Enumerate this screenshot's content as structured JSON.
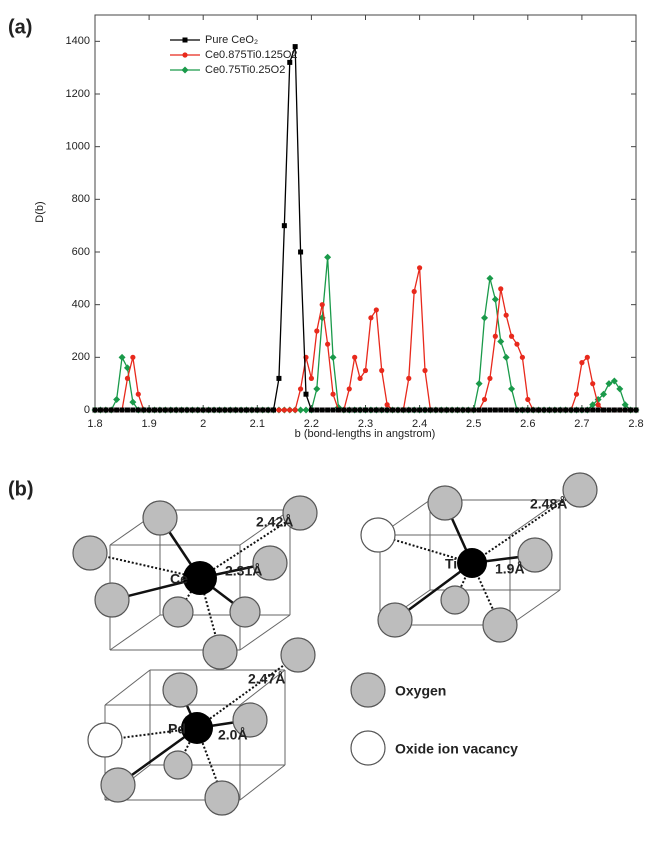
{
  "figure_labels": [
    "(a)",
    "(b)"
  ],
  "chart_data": {
    "type": "line",
    "x_label": "b (bond-lengths in angstrom)",
    "y_label": "D(b)",
    "xlim": [
      1.8,
      2.8
    ],
    "ylim": [
      0,
      1500
    ],
    "xticks": [
      1.8,
      1.9,
      2,
      2.1,
      2.2,
      2.3,
      2.4,
      2.5,
      2.6,
      2.7,
      2.8
    ],
    "yticks": [
      0,
      200,
      400,
      600,
      800,
      1000,
      1200,
      1400
    ],
    "grid": false,
    "legend": "upper left",
    "x": [
      1.8,
      1.81,
      1.82,
      1.83,
      1.84,
      1.85,
      1.86,
      1.87,
      1.88,
      1.89,
      1.9,
      1.91,
      1.92,
      1.93,
      1.94,
      1.95,
      1.96,
      1.97,
      1.98,
      1.99,
      2,
      2.01,
      2.02,
      2.03,
      2.04,
      2.05,
      2.06,
      2.07,
      2.08,
      2.09,
      2.1,
      2.11,
      2.12,
      2.13,
      2.14,
      2.15,
      2.16,
      2.17,
      2.18,
      2.19,
      2.2,
      2.21,
      2.22,
      2.23,
      2.24,
      2.25,
      2.26,
      2.27,
      2.28,
      2.29,
      2.3,
      2.31,
      2.32,
      2.33,
      2.34,
      2.35,
      2.36,
      2.37,
      2.38,
      2.39,
      2.4,
      2.41,
      2.42,
      2.43,
      2.44,
      2.45,
      2.46,
      2.47,
      2.48,
      2.49,
      2.5,
      2.51,
      2.52,
      2.53,
      2.54,
      2.55,
      2.56,
      2.57,
      2.58,
      2.59,
      2.6,
      2.61,
      2.62,
      2.63,
      2.64,
      2.65,
      2.66,
      2.67,
      2.68,
      2.69,
      2.7,
      2.71,
      2.72,
      2.73,
      2.74,
      2.75,
      2.76,
      2.77,
      2.78,
      2.79,
      2.8
    ],
    "series": [
      {
        "name": "Pure CeO₂",
        "color": "#000000",
        "marker": "square",
        "values": [
          0,
          0,
          0,
          0,
          0,
          0,
          0,
          0,
          0,
          0,
          0,
          0,
          0,
          0,
          0,
          0,
          0,
          0,
          0,
          0,
          0,
          0,
          0,
          0,
          0,
          0,
          0,
          0,
          0,
          0,
          0,
          0,
          0,
          0,
          120,
          700,
          1320,
          1380,
          600,
          60,
          0,
          0,
          0,
          0,
          0,
          0,
          0,
          0,
          0,
          0,
          0,
          0,
          0,
          0,
          0,
          0,
          0,
          0,
          0,
          0,
          0,
          0,
          0,
          0,
          0,
          0,
          0,
          0,
          0,
          0,
          0,
          0,
          0,
          0,
          0,
          0,
          0,
          0,
          0,
          0,
          0,
          0,
          0,
          0,
          0,
          0,
          0,
          0,
          0,
          0,
          0,
          0,
          0,
          0,
          0,
          0,
          0,
          0,
          0,
          0,
          0
        ]
      },
      {
        "name": "Ce0.875Ti0.125O2",
        "color": "#e8291c",
        "marker": "circle",
        "values": [
          0,
          0,
          0,
          0,
          0,
          0,
          120,
          200,
          60,
          0,
          0,
          0,
          0,
          0,
          0,
          0,
          0,
          0,
          0,
          0,
          0,
          0,
          0,
          0,
          0,
          0,
          0,
          0,
          0,
          0,
          0,
          0,
          0,
          0,
          0,
          0,
          0,
          0,
          80,
          200,
          120,
          300,
          400,
          250,
          60,
          0,
          0,
          80,
          200,
          120,
          150,
          350,
          380,
          150,
          20,
          0,
          0,
          0,
          120,
          450,
          540,
          150,
          0,
          0,
          0,
          0,
          0,
          0,
          0,
          0,
          0,
          0,
          40,
          120,
          280,
          460,
          360,
          280,
          250,
          200,
          40,
          0,
          0,
          0,
          0,
          0,
          0,
          0,
          0,
          60,
          180,
          200,
          100,
          20,
          0,
          0,
          0,
          0,
          0,
          0,
          0
        ]
      },
      {
        "name": "Ce0.75Ti0.25O2",
        "color": "#1a9a4a",
        "marker": "diamond",
        "values": [
          0,
          0,
          0,
          0,
          40,
          200,
          160,
          30,
          0,
          0,
          0,
          0,
          0,
          0,
          0,
          0,
          0,
          0,
          0,
          0,
          0,
          0,
          0,
          0,
          0,
          0,
          0,
          0,
          0,
          0,
          0,
          0,
          0,
          0,
          0,
          0,
          0,
          0,
          0,
          0,
          0,
          80,
          350,
          580,
          200,
          10,
          0,
          0,
          0,
          0,
          0,
          0,
          0,
          0,
          0,
          0,
          0,
          0,
          0,
          0,
          0,
          0,
          0,
          0,
          0,
          0,
          0,
          0,
          0,
          0,
          0,
          100,
          350,
          500,
          420,
          260,
          200,
          80,
          0,
          0,
          0,
          0,
          0,
          0,
          0,
          0,
          0,
          0,
          0,
          0,
          0,
          0,
          20,
          40,
          60,
          100,
          110,
          80,
          20,
          0,
          0
        ]
      }
    ]
  },
  "diagram": {
    "structures": [
      {
        "atom": "Ce",
        "short_bond": "2.31Å",
        "long_bond": "2.42Å"
      },
      {
        "atom": "Ti",
        "short_bond": "1.9Å",
        "long_bond": "2.48Å"
      },
      {
        "atom": "Pd",
        "short_bond": "2.0Å",
        "long_bond": "2.47Å"
      }
    ],
    "legend": [
      "Oxygen",
      "Oxide ion vacancy"
    ]
  }
}
